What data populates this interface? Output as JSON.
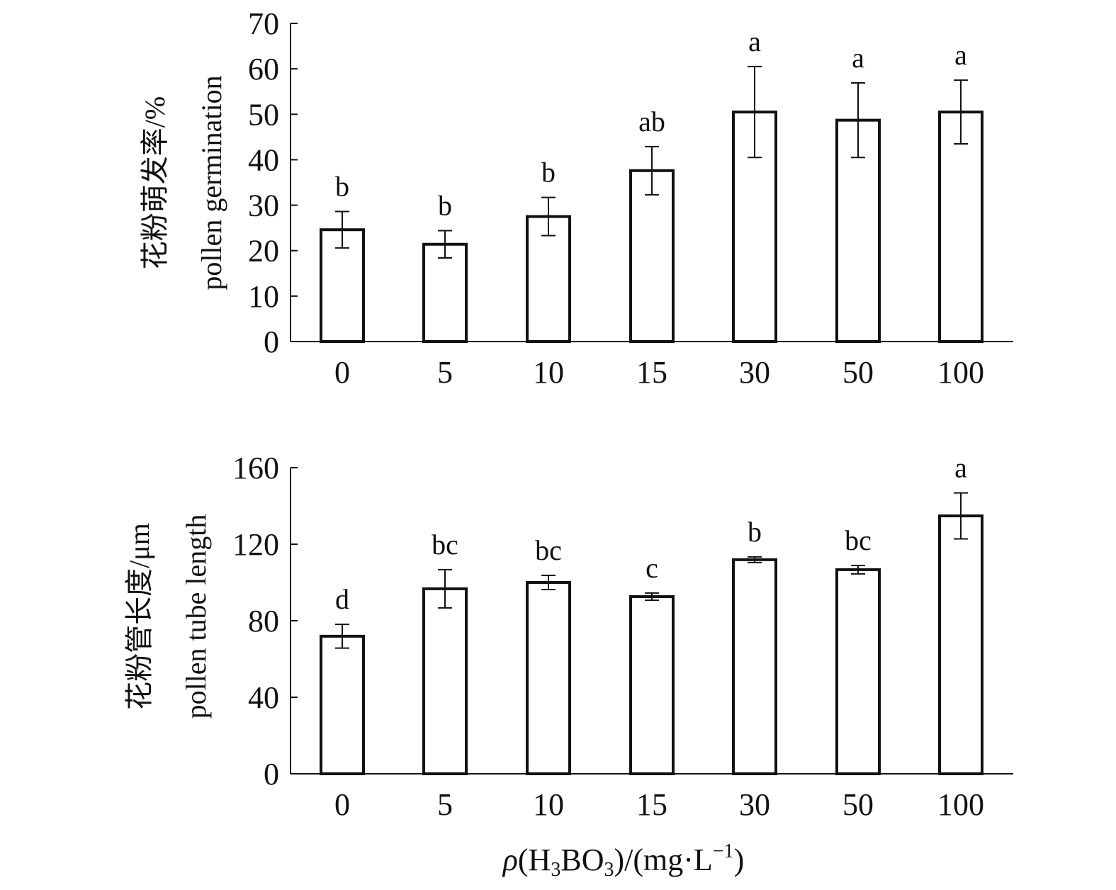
{
  "chart_data": [
    {
      "type": "bar",
      "title": "",
      "categories": [
        "0",
        "5",
        "10",
        "15",
        "30",
        "50",
        "100"
      ],
      "values": [
        24.6,
        21.4,
        27.5,
        37.6,
        50.5,
        48.7,
        50.5
      ],
      "errors": [
        4.0,
        3.0,
        4.2,
        5.3,
        10.0,
        8.2,
        7.0
      ],
      "significance": [
        "b",
        "b",
        "b",
        "ab",
        "a",
        "a",
        "a"
      ],
      "ylabel_cn": "花粉萌发率/%",
      "ylabel_en": "pollen germination",
      "ylim": [
        0,
        70
      ],
      "yticks": [
        "0",
        "10",
        "20",
        "30",
        "40",
        "50",
        "60",
        "70"
      ],
      "grid": false
    },
    {
      "type": "bar",
      "title": "",
      "categories": [
        "0",
        "5",
        "10",
        "15",
        "30",
        "50",
        "100"
      ],
      "values": [
        71.9,
        96.7,
        100.0,
        92.6,
        111.9,
        106.7,
        134.8
      ],
      "errors": [
        6.2,
        10.0,
        3.7,
        1.9,
        1.5,
        2.2,
        12.0
      ],
      "significance": [
        "d",
        "bc",
        "bc",
        "c",
        "b",
        "bc",
        "a"
      ],
      "ylabel_cn": "花粉管长度/μm",
      "ylabel_en": "pollen tube length",
      "ylim": [
        0,
        160
      ],
      "yticks": [
        "0",
        "40",
        "80",
        "120",
        "160"
      ],
      "grid": false,
      "xlabel": {
        "rho": "ρ",
        "open": "(H",
        "sub1": "3",
        "mid": "BO",
        "sub2": "3",
        "close": ")/(mg·L",
        "sup": "−1",
        "end": ")"
      }
    }
  ]
}
